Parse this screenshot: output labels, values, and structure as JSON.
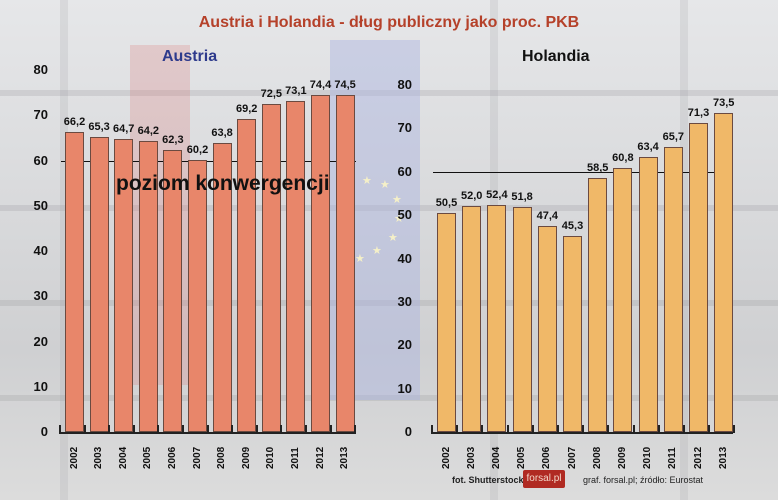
{
  "title": "Austria i Holandia - dług publiczny jako proc. PKB",
  "colors": {
    "title": "#b5412a",
    "austria_bar": "#e8866a",
    "holandia_bar": "#f0b868",
    "austria_label": "#2d3a8c",
    "holandia_label": "#111111"
  },
  "reference_label": "poziom konwergencji",
  "footer": {
    "photo_credit": "fot. Shutterstock",
    "logo": "forsal.pl",
    "source": "graf. forsal.pl;  źródło: Eurostat"
  },
  "chart_data": [
    {
      "type": "bar",
      "title": "Austria",
      "categories": [
        "2002",
        "2003",
        "2004",
        "2005",
        "2006",
        "2007",
        "2008",
        "2009",
        "2010",
        "2011",
        "2012",
        "2013"
      ],
      "values": [
        66.2,
        65.3,
        64.7,
        64.2,
        62.3,
        60.2,
        63.8,
        69.2,
        72.5,
        73.1,
        74.4,
        74.5
      ],
      "value_labels": [
        "66,2",
        "65,3",
        "64,7",
        "64,2",
        "62,3",
        "60,2",
        "63,8",
        "69,2",
        "72,5",
        "73,1",
        "74,4",
        "74,5"
      ],
      "yticks": [
        "0",
        "10",
        "20",
        "30",
        "40",
        "50",
        "60",
        "70",
        "80"
      ],
      "ylim": [
        0,
        80
      ],
      "reference_line": 60,
      "reference_label": "poziom konwergencji",
      "grid": false
    },
    {
      "type": "bar",
      "title": "Holandia",
      "categories": [
        "2002",
        "2003",
        "2004",
        "2005",
        "2006",
        "2007",
        "2008",
        "2009",
        "2010",
        "2011",
        "2012",
        "2013"
      ],
      "values": [
        50.5,
        52.0,
        52.4,
        51.8,
        47.4,
        45.3,
        58.5,
        60.8,
        63.4,
        65.7,
        71.3,
        73.5
      ],
      "value_labels": [
        "50,5",
        "52,0",
        "52,4",
        "51,8",
        "47,4",
        "45,3",
        "58,5",
        "60,8",
        "63,4",
        "65,7",
        "71,3",
        "73,5"
      ],
      "yticks": [
        "0",
        "10",
        "20",
        "30",
        "40",
        "50",
        "60",
        "70",
        "80"
      ],
      "ylim": [
        0,
        80
      ],
      "reference_line": 60,
      "grid": false
    }
  ]
}
